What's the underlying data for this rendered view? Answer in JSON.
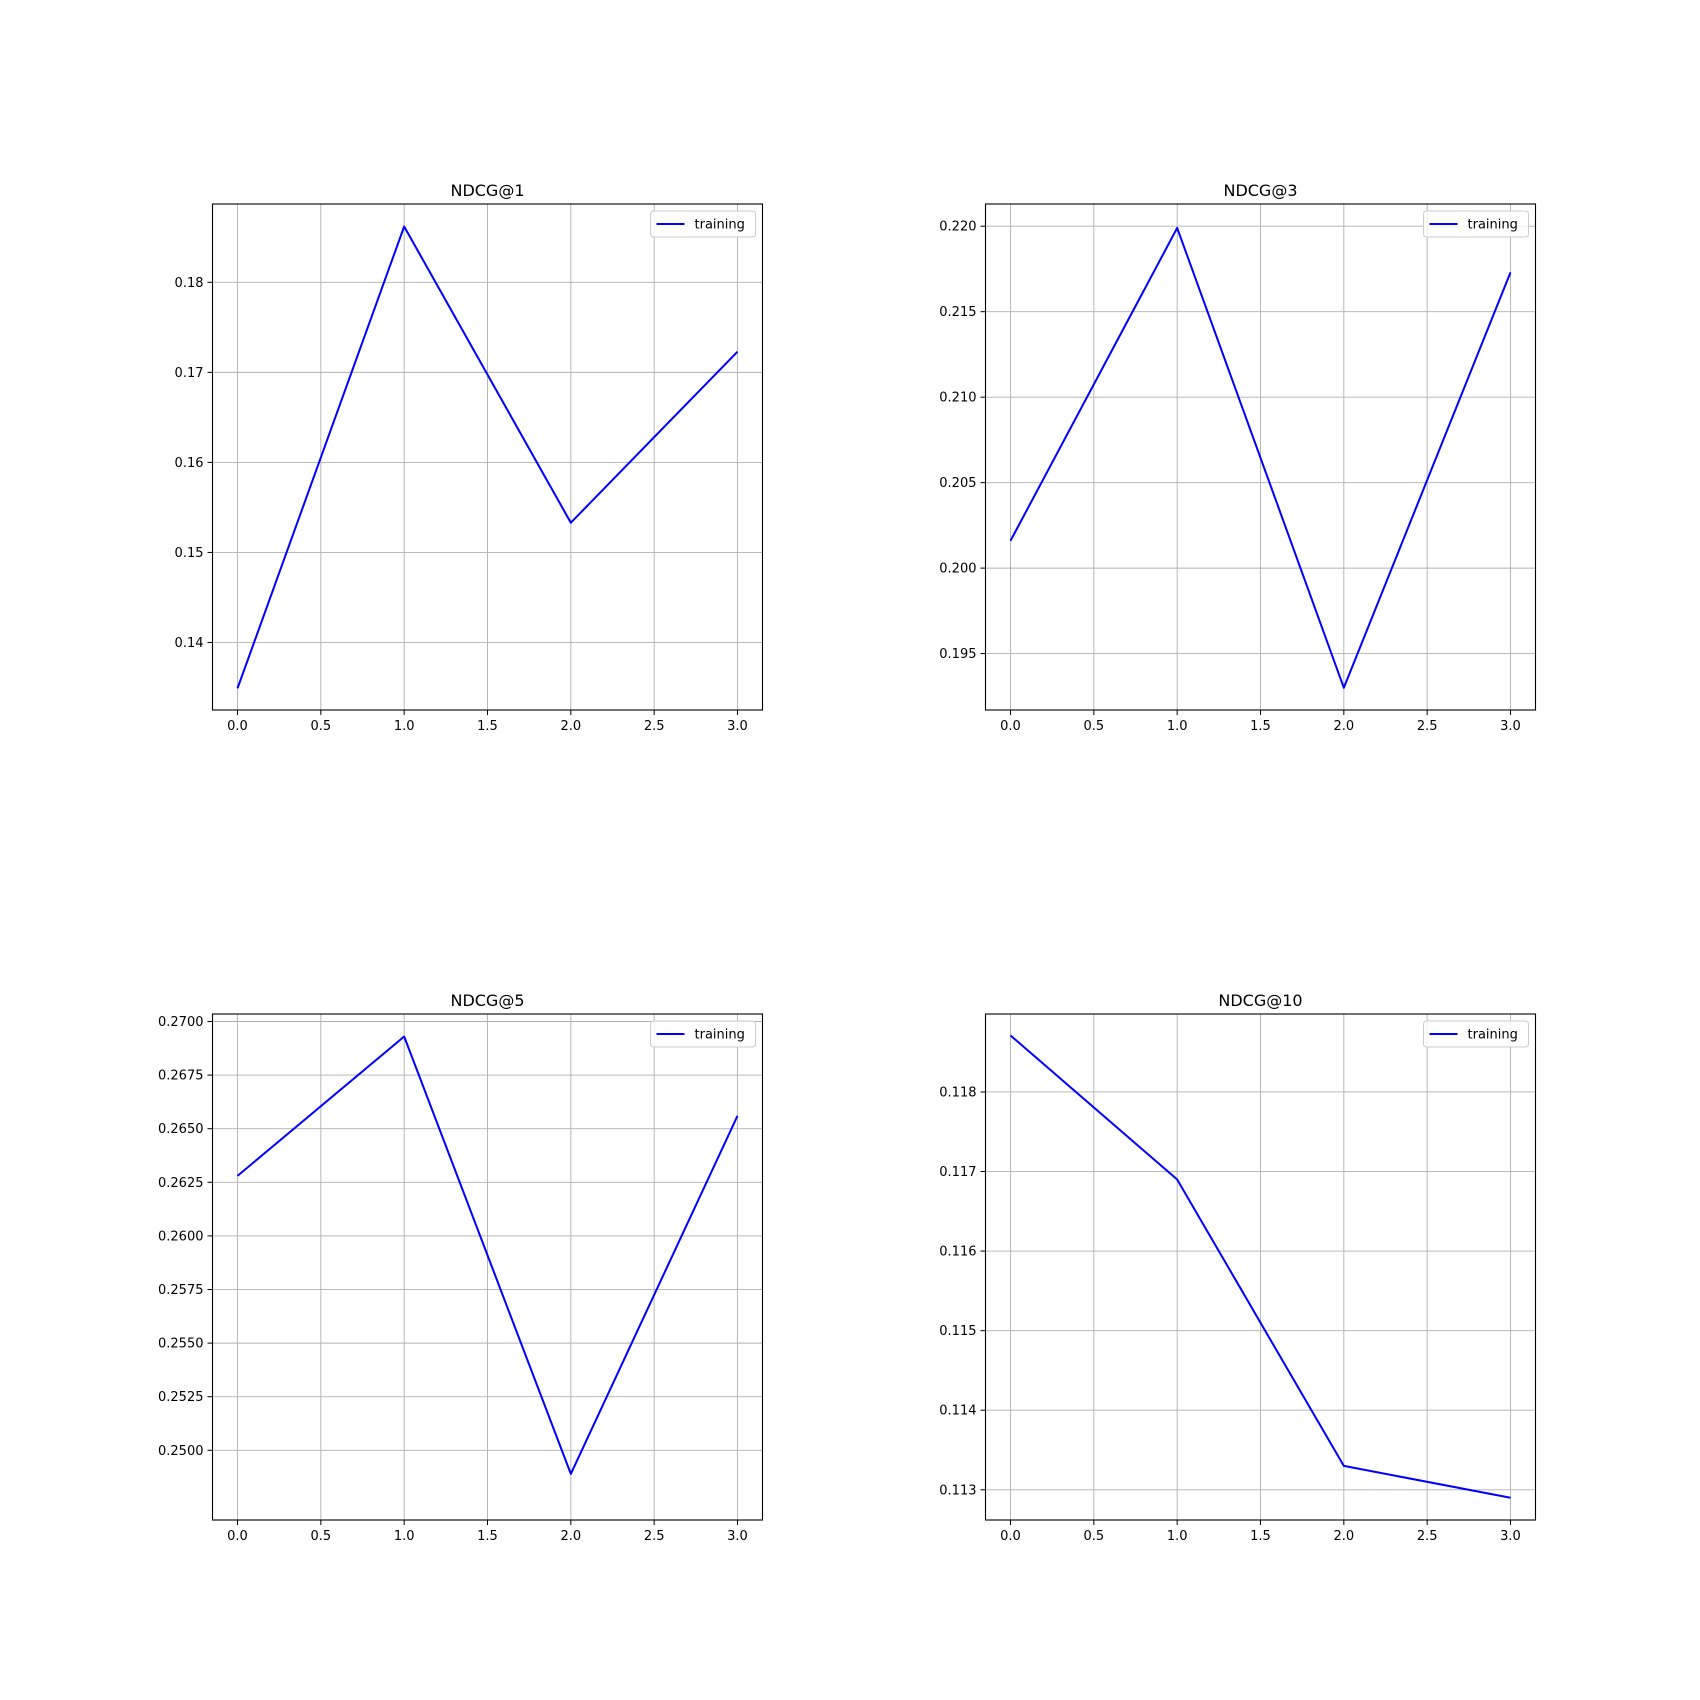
{
  "chart_data": [
    {
      "type": "line",
      "title": "NDCG@1",
      "xlabel": "",
      "ylabel": "",
      "grid": true,
      "legend_position": "upper right",
      "xlim": [
        -0.15,
        3.15
      ],
      "ylim": [
        0.1325,
        0.1887
      ],
      "x_ticks": [
        0.0,
        0.5,
        1.0,
        1.5,
        2.0,
        2.5,
        3.0
      ],
      "x_tick_labels": [
        "0.0",
        "0.5",
        "1.0",
        "1.5",
        "2.0",
        "2.5",
        "3.0"
      ],
      "y_ticks": [
        0.14,
        0.15,
        0.16,
        0.17,
        0.18
      ],
      "y_tick_labels": [
        "0.14",
        "0.15",
        "0.16",
        "0.17",
        "0.18"
      ],
      "series": [
        {
          "name": "training",
          "color": "#0000ff",
          "x": [
            0,
            1,
            2,
            3
          ],
          "y": [
            0.1349,
            0.1862,
            0.1533,
            0.1723
          ]
        }
      ]
    },
    {
      "type": "line",
      "title": "NDCG@3",
      "xlabel": "",
      "ylabel": "",
      "grid": true,
      "legend_position": "upper right",
      "xlim": [
        -0.15,
        3.15
      ],
      "ylim": [
        0.1917,
        0.2213
      ],
      "x_ticks": [
        0.0,
        0.5,
        1.0,
        1.5,
        2.0,
        2.5,
        3.0
      ],
      "x_tick_labels": [
        "0.0",
        "0.5",
        "1.0",
        "1.5",
        "2.0",
        "2.5",
        "3.0"
      ],
      "y_ticks": [
        0.195,
        0.2,
        0.205,
        0.21,
        0.215,
        0.22
      ],
      "y_tick_labels": [
        "0.195",
        "0.200",
        "0.205",
        "0.210",
        "0.215",
        "0.220"
      ],
      "series": [
        {
          "name": "training",
          "color": "#0000ff",
          "x": [
            0,
            1,
            2,
            3
          ],
          "y": [
            0.2016,
            0.2199,
            0.193,
            0.2173
          ]
        }
      ]
    },
    {
      "type": "line",
      "title": "NDCG@5",
      "xlabel": "",
      "ylabel": "",
      "grid": true,
      "legend_position": "upper right",
      "xlim": [
        -0.15,
        3.15
      ],
      "ylim": [
        0.24675,
        0.27035
      ],
      "x_ticks": [
        0.0,
        0.5,
        1.0,
        1.5,
        2.0,
        2.5,
        3.0
      ],
      "x_tick_labels": [
        "0.0",
        "0.5",
        "1.0",
        "1.5",
        "2.0",
        "2.5",
        "3.0"
      ],
      "y_ticks": [
        0.25,
        0.2525,
        0.255,
        0.2575,
        0.26,
        0.2625,
        0.265,
        0.2675,
        0.27
      ],
      "y_tick_labels": [
        "0.2500",
        "0.2525",
        "0.2550",
        "0.2575",
        "0.2600",
        "0.2625",
        "0.2650",
        "0.2675",
        "0.2700"
      ],
      "series": [
        {
          "name": "training",
          "color": "#0000ff",
          "x": [
            0,
            1,
            2,
            3
          ],
          "y": [
            0.2628,
            0.2693,
            0.2489,
            0.2656
          ]
        }
      ]
    },
    {
      "type": "line",
      "title": "NDCG@10",
      "xlabel": "",
      "ylabel": "",
      "grid": true,
      "legend_position": "upper right",
      "xlim": [
        -0.15,
        3.15
      ],
      "ylim": [
        0.11262,
        0.11898
      ],
      "x_ticks": [
        0.0,
        0.5,
        1.0,
        1.5,
        2.0,
        2.5,
        3.0
      ],
      "x_tick_labels": [
        "0.0",
        "0.5",
        "1.0",
        "1.5",
        "2.0",
        "2.5",
        "3.0"
      ],
      "y_ticks": [
        0.113,
        0.114,
        0.115,
        0.116,
        0.117,
        0.118
      ],
      "y_tick_labels": [
        "0.113",
        "0.114",
        "0.115",
        "0.116",
        "0.117",
        "0.118"
      ],
      "series": [
        {
          "name": "training",
          "color": "#0000ff",
          "x": [
            0,
            1,
            2,
            3
          ],
          "y": [
            0.11871,
            0.1169,
            0.1133,
            0.1129
          ]
        }
      ]
    }
  ]
}
